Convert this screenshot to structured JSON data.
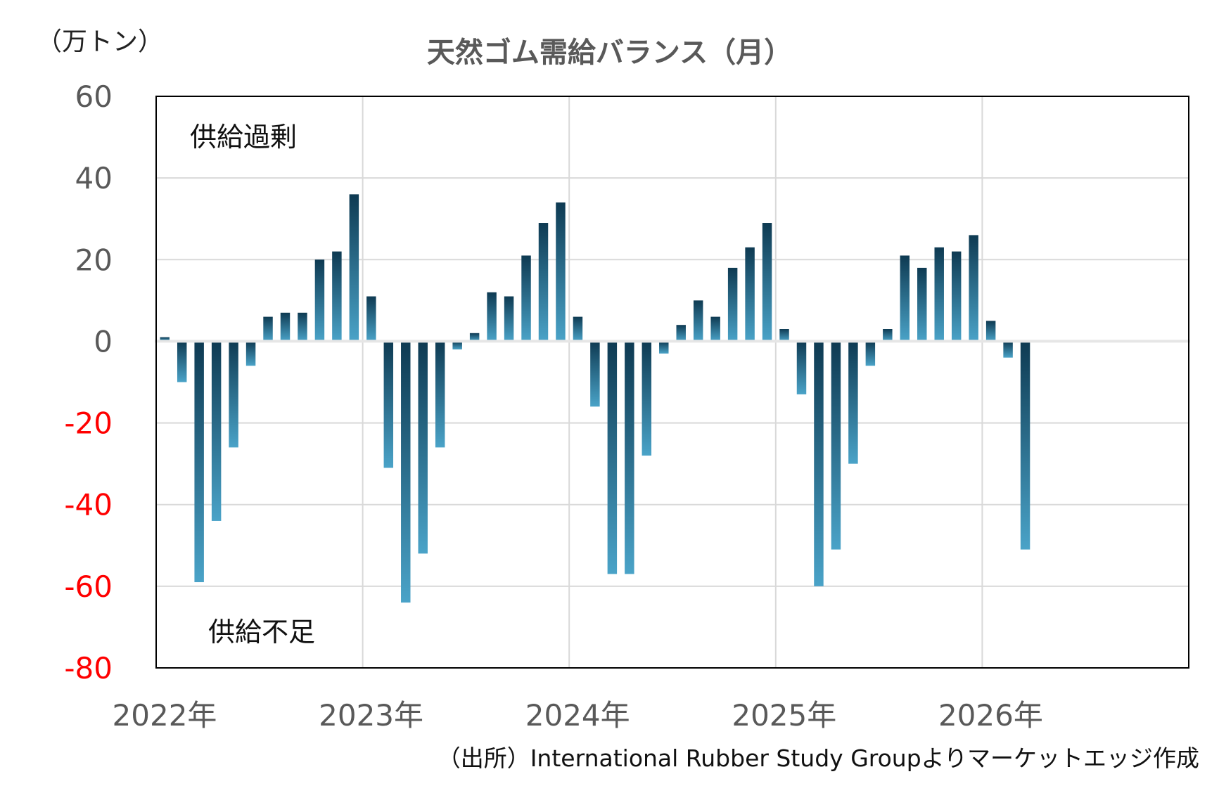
{
  "chart_data": {
    "type": "bar",
    "title": "天然ゴム需給バランス（月）",
    "ylabel": "（万トン）",
    "ylim": [
      -80,
      60
    ],
    "yticks": [
      "60",
      "40",
      "20",
      "0",
      "-20",
      "-40",
      "-60",
      "-80"
    ],
    "negative_tick_color": "#ff0000",
    "positive_tick_color": "#595959",
    "x_tick_labels": [
      "2022年",
      "2023年",
      "2024年",
      "2025年",
      "2026年"
    ],
    "months_total": 60,
    "start_month": "2022-01",
    "annotations": {
      "surplus": "供給過剰",
      "shortage": "供給不足"
    },
    "bar_color_top": "#0e3a52",
    "bar_color_bottom": "#4aa3c8",
    "grid": true,
    "series": [
      {
        "values": [
          1,
          -10,
          -59,
          -44,
          -26,
          -6,
          6,
          7,
          7,
          20,
          22,
          36,
          11,
          -31,
          -64,
          -52,
          -26,
          -2,
          2,
          12,
          11,
          21,
          29,
          34,
          6,
          -16,
          -57,
          -57,
          -28,
          -3,
          4,
          10,
          6,
          18,
          23,
          29,
          3,
          -13,
          -60,
          -51,
          -30,
          -6,
          3,
          21,
          18,
          23,
          22,
          26,
          5,
          -4,
          -51
        ]
      }
    ]
  },
  "source": "（出所）International Rubber Study Groupよりマーケットエッジ作成"
}
